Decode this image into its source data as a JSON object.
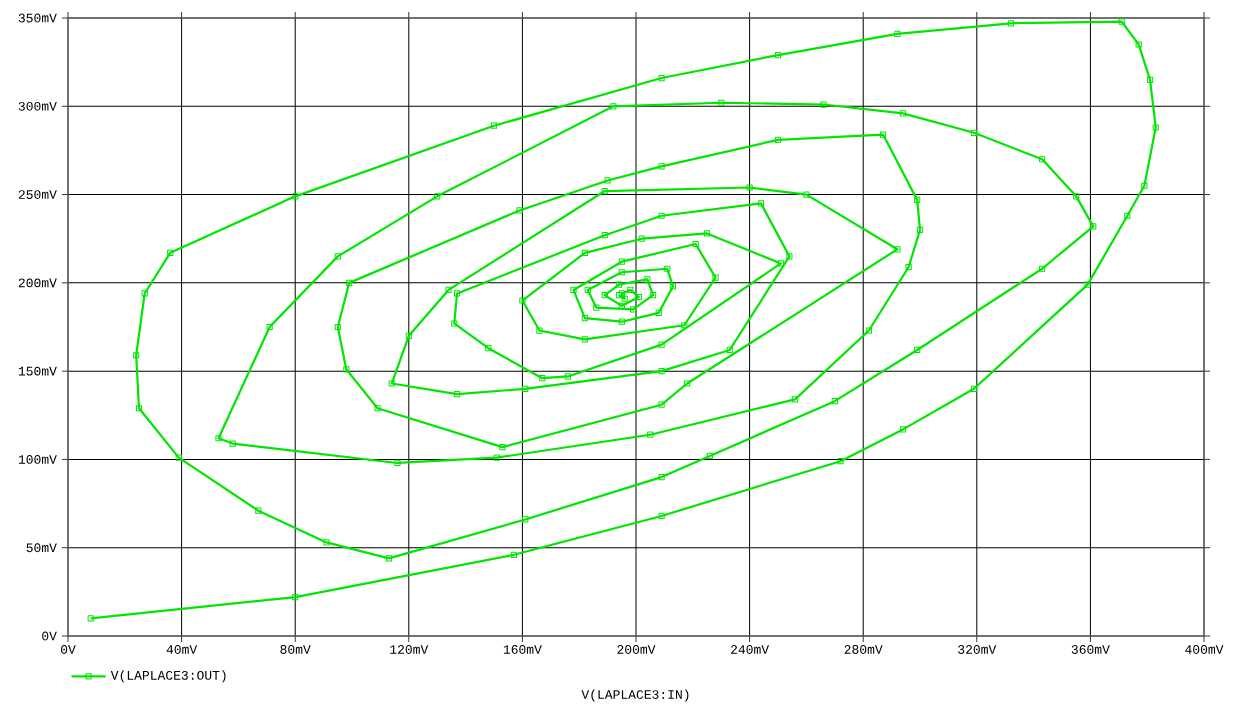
{
  "chart_data": {
    "type": "line",
    "xlabel": "V(LAPLACE3:IN)",
    "xlim": [
      0,
      400
    ],
    "ylim": [
      0,
      350
    ],
    "xticks": [
      {
        "value": 0,
        "label": "0V"
      },
      {
        "value": 40,
        "label": "40mV"
      },
      {
        "value": 80,
        "label": "80mV"
      },
      {
        "value": 120,
        "label": "120mV"
      },
      {
        "value": 160,
        "label": "160mV"
      },
      {
        "value": 200,
        "label": "200mV"
      },
      {
        "value": 240,
        "label": "240mV"
      },
      {
        "value": 280,
        "label": "280mV"
      },
      {
        "value": 320,
        "label": "320mV"
      },
      {
        "value": 360,
        "label": "360mV"
      },
      {
        "value": 400,
        "label": "400mV"
      }
    ],
    "yticks": [
      {
        "value": 0,
        "label": "0V"
      },
      {
        "value": 50,
        "label": "50mV"
      },
      {
        "value": 100,
        "label": "100mV"
      },
      {
        "value": 150,
        "label": "150mV"
      },
      {
        "value": 200,
        "label": "200mV"
      },
      {
        "value": 250,
        "label": "250mV"
      },
      {
        "value": 300,
        "label": "300mV"
      },
      {
        "value": 350,
        "label": "350mV"
      }
    ],
    "grid": true,
    "legend": "bottom left",
    "marker": "square",
    "line_style": "solid",
    "series": [
      {
        "name": "V(LAPLACE3:OUT)",
        "color": "#00e600",
        "x": [
          8,
          80,
          157,
          209,
          272,
          294,
          319,
          359,
          373,
          379,
          383,
          381,
          377,
          371,
          332,
          292,
          250,
          209,
          150,
          80,
          36,
          27,
          24,
          25,
          39,
          67,
          91,
          113,
          161,
          209,
          226,
          270,
          299,
          343,
          361,
          355,
          343,
          319,
          294,
          266,
          230,
          192,
          130,
          95,
          71,
          53,
          58,
          116,
          151,
          205,
          256,
          282,
          296,
          300,
          299,
          287,
          250,
          209,
          190,
          159,
          99,
          95,
          98,
          109,
          153,
          209,
          218,
          292,
          260,
          240,
          189,
          134,
          120,
          114,
          137,
          161,
          209,
          233,
          254,
          244,
          209,
          189,
          137,
          136,
          148,
          167,
          176,
          209,
          251,
          225,
          202,
          182,
          160,
          166,
          182,
          217,
          228,
          221,
          195,
          178,
          182,
          195,
          208,
          213,
          211,
          195,
          183,
          186,
          199,
          206,
          204,
          194,
          189,
          195,
          201,
          198,
          195,
          196,
          194
        ],
        "values": [
          10,
          22,
          46,
          68,
          99,
          117,
          140,
          199,
          238,
          255,
          288,
          315,
          335,
          348,
          347,
          341,
          329,
          316,
          289,
          249,
          217,
          194,
          159,
          129,
          101,
          71,
          53,
          44,
          66,
          90,
          102,
          133,
          162,
          208,
          232,
          249,
          270,
          285,
          296,
          301,
          302,
          300,
          249,
          215,
          175,
          112,
          109,
          98,
          101,
          114,
          134,
          173,
          209,
          230,
          247,
          284,
          281,
          266,
          258,
          241,
          200,
          175,
          151,
          129,
          107,
          131,
          143,
          219,
          250,
          254,
          252,
          196,
          170,
          143,
          137,
          140,
          150,
          162,
          215,
          245,
          238,
          227,
          194,
          177,
          163,
          146,
          147,
          165,
          211,
          228,
          225,
          217,
          190,
          173,
          168,
          176,
          203,
          222,
          212,
          196,
          180,
          178,
          183,
          198,
          208,
          206,
          196,
          186,
          185,
          193,
          202,
          199,
          193,
          187,
          192,
          196,
          194,
          191,
          193
        ]
      }
    ]
  }
}
